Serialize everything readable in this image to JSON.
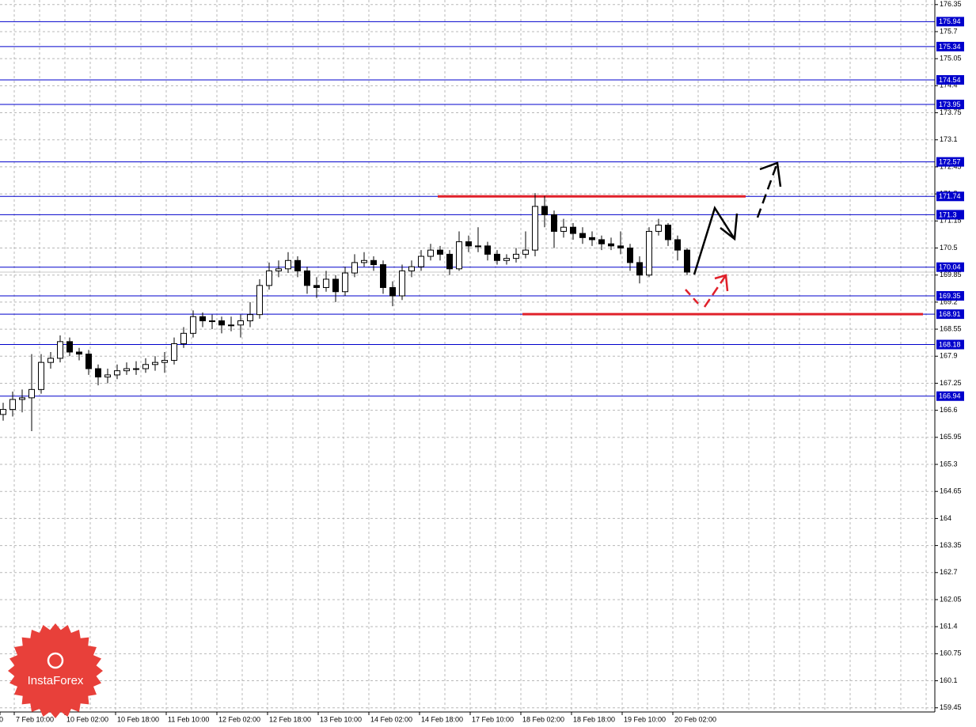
{
  "chart_data": {
    "type": "candlestick",
    "ylim": [
      159.35,
      176.46
    ],
    "yticks": [
      176.35,
      175.7,
      175.05,
      174.4,
      173.75,
      173.1,
      172.45,
      171.8,
      171.15,
      170.5,
      169.85,
      169.2,
      168.55,
      167.9,
      167.25,
      166.6,
      165.95,
      165.3,
      164.65,
      164.0,
      163.35,
      162.7,
      162.05,
      161.4,
      160.75,
      160.1,
      159.45
    ],
    "x_labels": [
      "0",
      "7 Feb 10:00",
      "10 Feb 02:00",
      "10 Feb 18:00",
      "11 Feb 10:00",
      "12 Feb 02:00",
      "12 Feb 18:00",
      "13 Feb 10:00",
      "14 Feb 02:00",
      "14 Feb 18:00",
      "17 Feb 10:00",
      "18 Feb 02:00",
      "18 Feb 18:00",
      "19 Feb 10:00",
      "20 Feb 02:00"
    ],
    "grid": true,
    "levels": [
      175.94,
      175.34,
      174.54,
      173.95,
      172.57,
      171.74,
      171.3,
      170.04,
      169.35,
      168.91,
      168.18,
      166.94
    ],
    "level_color": "#0000cc",
    "resistance": 171.74,
    "support": 168.91,
    "zone_color": "#e0202a",
    "logo": "InstaForex",
    "candles": [
      [
        166.5,
        166.78,
        166.35,
        166.62
      ],
      [
        166.62,
        167.05,
        166.45,
        166.86
      ],
      [
        166.86,
        167.1,
        166.55,
        166.9
      ],
      [
        166.9,
        167.95,
        166.1,
        167.1
      ],
      [
        167.1,
        167.95,
        167.0,
        167.75
      ],
      [
        167.75,
        168.0,
        167.6,
        167.85
      ],
      [
        167.85,
        168.4,
        167.75,
        168.25
      ],
      [
        168.25,
        168.35,
        167.9,
        168.0
      ],
      [
        168.0,
        168.1,
        167.8,
        167.95
      ],
      [
        167.95,
        168.05,
        167.45,
        167.6
      ],
      [
        167.6,
        167.7,
        167.2,
        167.4
      ],
      [
        167.4,
        167.6,
        167.25,
        167.45
      ],
      [
        167.45,
        167.7,
        167.35,
        167.55
      ],
      [
        167.55,
        167.75,
        167.45,
        167.6
      ],
      [
        167.6,
        167.78,
        167.45,
        167.6
      ],
      [
        167.6,
        167.85,
        167.5,
        167.7
      ],
      [
        167.7,
        167.9,
        167.55,
        167.75
      ],
      [
        167.75,
        168.0,
        167.5,
        167.8
      ],
      [
        167.8,
        168.35,
        167.7,
        168.2
      ],
      [
        168.2,
        168.6,
        168.1,
        168.45
      ],
      [
        168.45,
        169.0,
        168.35,
        168.85
      ],
      [
        168.85,
        168.95,
        168.6,
        168.75
      ],
      [
        168.75,
        168.9,
        168.55,
        168.75
      ],
      [
        168.75,
        168.85,
        168.45,
        168.65
      ],
      [
        168.65,
        168.85,
        168.5,
        168.65
      ],
      [
        168.65,
        168.9,
        168.35,
        168.75
      ],
      [
        168.75,
        169.2,
        168.6,
        168.9
      ],
      [
        168.9,
        169.75,
        168.8,
        169.6
      ],
      [
        169.6,
        170.15,
        169.5,
        169.95
      ],
      [
        169.95,
        170.2,
        169.8,
        170.0
      ],
      [
        170.0,
        170.4,
        169.9,
        170.2
      ],
      [
        170.2,
        170.3,
        169.8,
        169.95
      ],
      [
        169.95,
        170.05,
        169.4,
        169.6
      ],
      [
        169.6,
        169.8,
        169.3,
        169.55
      ],
      [
        169.55,
        169.95,
        169.45,
        169.75
      ],
      [
        169.75,
        169.85,
        169.2,
        169.45
      ],
      [
        169.45,
        170.05,
        169.35,
        169.9
      ],
      [
        169.9,
        170.35,
        169.8,
        170.15
      ],
      [
        170.15,
        170.4,
        170.05,
        170.2
      ],
      [
        170.2,
        170.3,
        169.95,
        170.1
      ],
      [
        170.1,
        170.2,
        169.4,
        169.55
      ],
      [
        169.55,
        169.7,
        169.1,
        169.35
      ],
      [
        169.35,
        170.1,
        169.25,
        169.95
      ],
      [
        169.95,
        170.2,
        169.8,
        170.05
      ],
      [
        170.05,
        170.45,
        169.95,
        170.3
      ],
      [
        170.3,
        170.6,
        170.2,
        170.45
      ],
      [
        170.45,
        170.55,
        170.2,
        170.35
      ],
      [
        170.35,
        170.45,
        169.85,
        170.0
      ],
      [
        170.0,
        170.9,
        169.95,
        170.65
      ],
      [
        170.65,
        170.8,
        170.4,
        170.55
      ],
      [
        170.55,
        171.0,
        170.4,
        170.55
      ],
      [
        170.55,
        170.65,
        170.2,
        170.35
      ],
      [
        170.35,
        170.45,
        170.1,
        170.2
      ],
      [
        170.2,
        170.35,
        170.1,
        170.25
      ],
      [
        170.25,
        170.5,
        170.15,
        170.35
      ],
      [
        170.35,
        170.9,
        170.25,
        170.45
      ],
      [
        170.45,
        171.82,
        170.3,
        171.5
      ],
      [
        171.5,
        171.75,
        171.0,
        171.3
      ],
      [
        171.3,
        171.4,
        170.5,
        170.9
      ],
      [
        170.9,
        171.2,
        170.75,
        171.0
      ],
      [
        171.0,
        171.1,
        170.7,
        170.85
      ],
      [
        170.85,
        171.0,
        170.6,
        170.75
      ],
      [
        170.75,
        170.9,
        170.55,
        170.7
      ],
      [
        170.7,
        170.8,
        170.45,
        170.6
      ],
      [
        170.6,
        170.75,
        170.45,
        170.55
      ],
      [
        170.55,
        170.9,
        170.35,
        170.5
      ],
      [
        170.5,
        170.6,
        169.95,
        170.15
      ],
      [
        170.15,
        170.3,
        169.65,
        169.85
      ],
      [
        169.85,
        171.0,
        169.8,
        170.9
      ],
      [
        170.9,
        171.2,
        170.8,
        171.05
      ],
      [
        171.05,
        171.1,
        170.55,
        170.7
      ],
      [
        170.7,
        170.8,
        170.2,
        170.45
      ],
      [
        170.45,
        170.5,
        169.85,
        169.92
      ]
    ]
  }
}
